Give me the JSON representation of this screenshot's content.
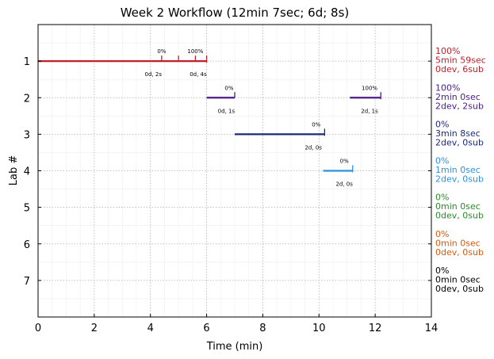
{
  "chart_data": {
    "type": "line",
    "title": "Week 2 Workflow (12min 7sec; 6d; 8s)",
    "xlabel": "Time (min)",
    "ylabel": "Lab #",
    "xlim": [
      0,
      14
    ],
    "ylim": [
      8,
      0
    ],
    "x_ticks": [
      "0",
      "2",
      "4",
      "6",
      "8",
      "10",
      "12",
      "14"
    ],
    "y_ticks": [
      "1",
      "2",
      "3",
      "4",
      "5",
      "6",
      "7"
    ],
    "grid": true,
    "series": [
      {
        "lab": 1,
        "color": "#c0202a",
        "segments": [
          {
            "start": 0,
            "end": 6
          }
        ],
        "markers": [
          4.4,
          5.0,
          5.6,
          6.0
        ],
        "annotations": [
          {
            "text": "0%",
            "x": 4.4,
            "pos": "above"
          },
          {
            "text": "100%",
            "x": 5.6,
            "pos": "above"
          },
          {
            "text": "0d, 2s",
            "x": 4.1,
            "pos": "below"
          },
          {
            "text": "0d, 4s",
            "x": 5.7,
            "pos": "below"
          }
        ],
        "summary": [
          "100%",
          "5min 59sec",
          "0dev, 6sub"
        ]
      },
      {
        "lab": 2,
        "color": "#4b1a8c",
        "segments": [
          {
            "start": 6.0,
            "end": 7.0
          },
          {
            "start": 11.1,
            "end": 12.2
          }
        ],
        "markers": [
          7.0,
          12.2
        ],
        "annotations": [
          {
            "text": "0%",
            "x": 6.8,
            "pos": "above"
          },
          {
            "text": "0d, 1s",
            "x": 6.7,
            "pos": "below"
          },
          {
            "text": "100%",
            "x": 11.8,
            "pos": "above"
          },
          {
            "text": "2d, 1s",
            "x": 11.8,
            "pos": "below"
          }
        ],
        "summary": [
          "100%",
          "2min 0sec",
          "2dev, 2sub"
        ]
      },
      {
        "lab": 3,
        "color": "#1a2a7a",
        "segments": [
          {
            "start": 7.0,
            "end": 10.2
          }
        ],
        "markers": [
          10.2
        ],
        "annotations": [
          {
            "text": "0%",
            "x": 9.9,
            "pos": "above"
          },
          {
            "text": "2d, 0s",
            "x": 9.8,
            "pos": "below"
          }
        ],
        "summary": [
          "0%",
          "3min 8sec",
          "2dev, 0sub"
        ]
      },
      {
        "lab": 4,
        "color": "#2e90e0",
        "segments": [
          {
            "start": 10.15,
            "end": 11.2
          }
        ],
        "markers": [
          11.2
        ],
        "annotations": [
          {
            "text": "0%",
            "x": 10.9,
            "pos": "above"
          },
          {
            "text": "2d, 0s",
            "x": 10.9,
            "pos": "below"
          }
        ],
        "summary": [
          "0%",
          "1min 0sec",
          "2dev, 0sub"
        ]
      },
      {
        "lab": 5,
        "color": "#2a8a2a",
        "segments": [],
        "markers": [],
        "annotations": [],
        "summary": [
          "0%",
          "0min 0sec",
          "0dev, 0sub"
        ]
      },
      {
        "lab": 6,
        "color": "#d65a10",
        "segments": [],
        "markers": [],
        "annotations": [],
        "summary": [
          "0%",
          "0min 0sec",
          "0dev, 0sub"
        ]
      },
      {
        "lab": 7,
        "color": "#000000",
        "segments": [],
        "markers": [],
        "annotations": [],
        "summary": [
          "0%",
          "0min 0sec",
          "0dev, 0sub"
        ]
      }
    ]
  }
}
